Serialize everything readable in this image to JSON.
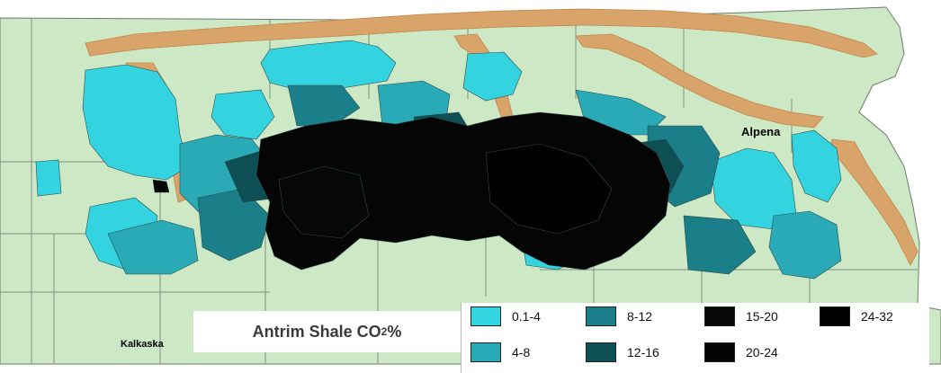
{
  "map": {
    "place_labels": {
      "kalkaska": "Kalkaska",
      "alpena": "Alpena"
    },
    "colors": {
      "land": "#cde8c4",
      "shale_outcrop": "#d9a46a",
      "county_lines": "#7f8f7f"
    }
  },
  "title": {
    "prefix": "Antrim Shale CO",
    "subscript": "2",
    "suffix": " %"
  },
  "legend": {
    "items": [
      {
        "label": "0.1-4",
        "color": "#33d4e0"
      },
      {
        "label": "4-8",
        "color": "#2aaab6"
      },
      {
        "label": "8-12",
        "color": "#1a7f88"
      },
      {
        "label": "12-16",
        "color": "#0e4f55"
      },
      {
        "label": "15-20",
        "color": "#070707"
      },
      {
        "label": "20-24",
        "color": "#040404"
      },
      {
        "label": "24-32",
        "color": "#000000"
      }
    ]
  }
}
